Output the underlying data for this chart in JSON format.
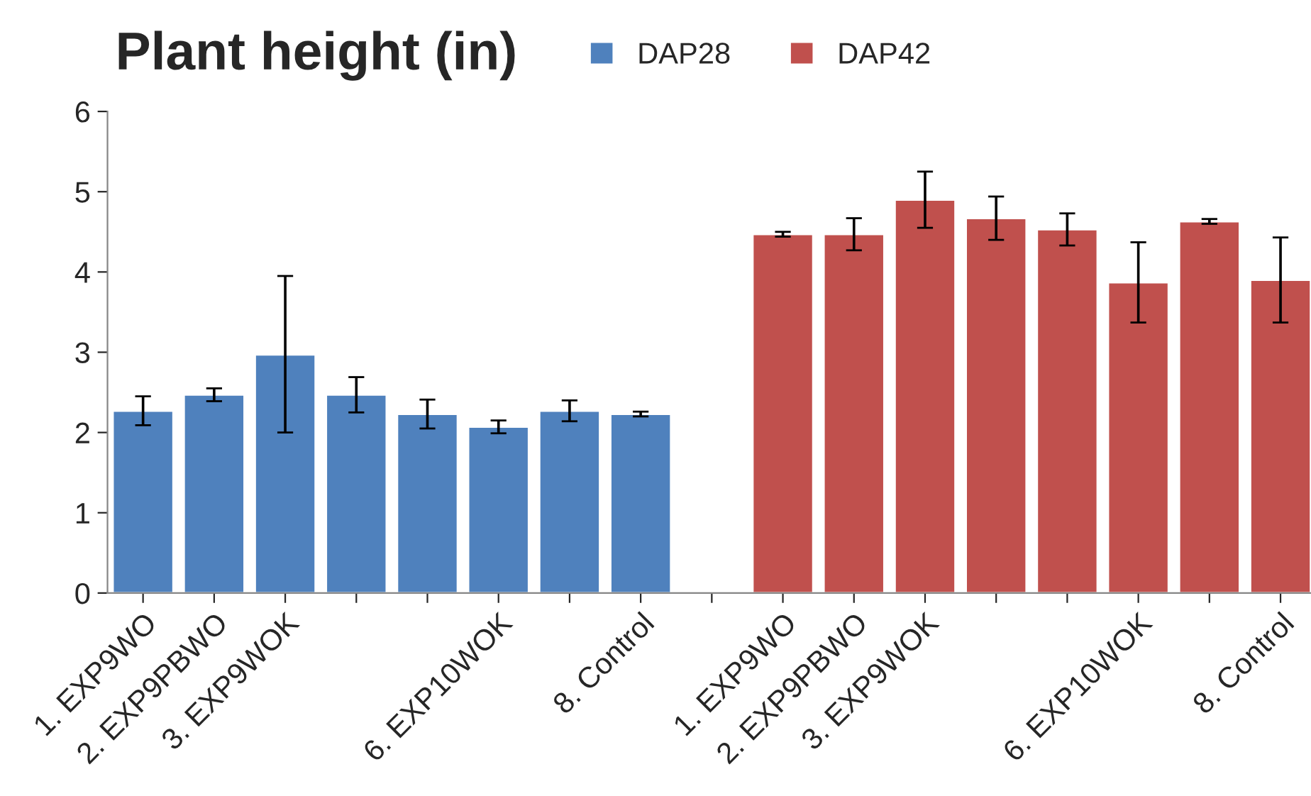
{
  "chart_data": {
    "type": "bar",
    "title": "Plant height (in)",
    "categories": [
      "1. EXP9WO",
      "2. EXP9PBWO",
      "3. EXP9WOK",
      null,
      null,
      "6. EXP10WOK",
      null,
      "8. Control",
      null,
      "1. EXP9WO",
      "2. EXP9PBWO",
      "3. EXP9WOK",
      null,
      null,
      "6. EXP10WOK",
      null,
      "8. Control"
    ],
    "series": [
      {
        "name": "DAP28",
        "color": "#4f81bd",
        "values": [
          2.27,
          2.47,
          2.97,
          2.47,
          2.23,
          2.07,
          2.27,
          2.23,
          null,
          null,
          null,
          null,
          null,
          null,
          null,
          null,
          null
        ],
        "errors": [
          0.18,
          0.08,
          [
            2.0,
            3.95
          ],
          0.22,
          0.18,
          0.08,
          0.13,
          0.03,
          null,
          null,
          null,
          null,
          null,
          null,
          null,
          null,
          null
        ]
      },
      {
        "name": "DAP42",
        "color": "#c0504d",
        "values": [
          null,
          null,
          null,
          null,
          null,
          null,
          null,
          null,
          null,
          4.47,
          4.47,
          4.9,
          4.67,
          4.53,
          3.87,
          4.63,
          3.9
        ],
        "errors": [
          null,
          null,
          null,
          null,
          null,
          null,
          null,
          null,
          null,
          0.03,
          0.2,
          [
            4.55,
            5.25
          ],
          0.27,
          0.2,
          0.5,
          0.03,
          0.53
        ]
      }
    ],
    "ylim": [
      0,
      6
    ],
    "yticks": [
      0,
      1,
      2,
      3,
      4,
      5,
      6
    ],
    "grid": false,
    "legend": "top"
  }
}
